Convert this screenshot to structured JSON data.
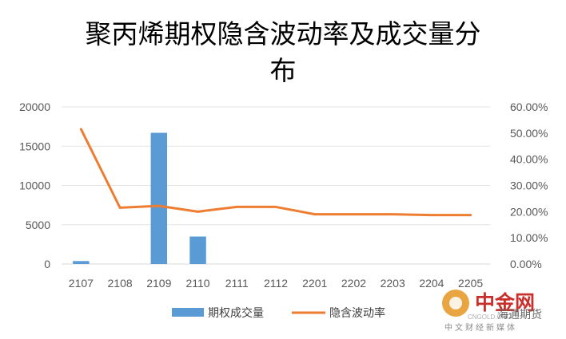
{
  "chart_data": {
    "type": "bar+line",
    "title_line1": "聚丙烯期权隐含波动率及成交量分",
    "title_line2": "布",
    "categories": [
      "2107",
      "2108",
      "2109",
      "2110",
      "2111",
      "2112",
      "2201",
      "2202",
      "2203",
      "2204",
      "2205"
    ],
    "series": [
      {
        "name": "期权成交量",
        "type": "bar",
        "axis": "left",
        "color": "#5B9BD5",
        "values": [
          380,
          0,
          16700,
          3500,
          0,
          0,
          0,
          0,
          0,
          0,
          0
        ]
      },
      {
        "name": "隐含波动率",
        "type": "line",
        "axis": "right",
        "color": "#ED7D31",
        "values": [
          0.515,
          0.215,
          0.222,
          0.2,
          0.218,
          0.218,
          0.19,
          0.19,
          0.19,
          0.187,
          0.187
        ]
      }
    ],
    "y_left": {
      "ylim": [
        0,
        20000
      ],
      "ticks": [
        0,
        5000,
        10000,
        15000,
        20000
      ],
      "tick_labels": [
        "0",
        "5000",
        "10000",
        "15000",
        "20000"
      ]
    },
    "y_right": {
      "ylim": [
        0,
        0.6
      ],
      "ticks": [
        0,
        0.1,
        0.2,
        0.3,
        0.4,
        0.5,
        0.6
      ],
      "tick_labels": [
        "0.00%",
        "10.00%",
        "20.00%",
        "30.00%",
        "40.00%",
        "50.00%",
        "60.00%"
      ]
    },
    "grid": true,
    "legend_position": "bottom"
  },
  "watermark": {
    "brand": "中金网",
    "tagline": "中文财经新媒体",
    "url": "CNGOLD.ORG",
    "institution": "海通期货"
  }
}
